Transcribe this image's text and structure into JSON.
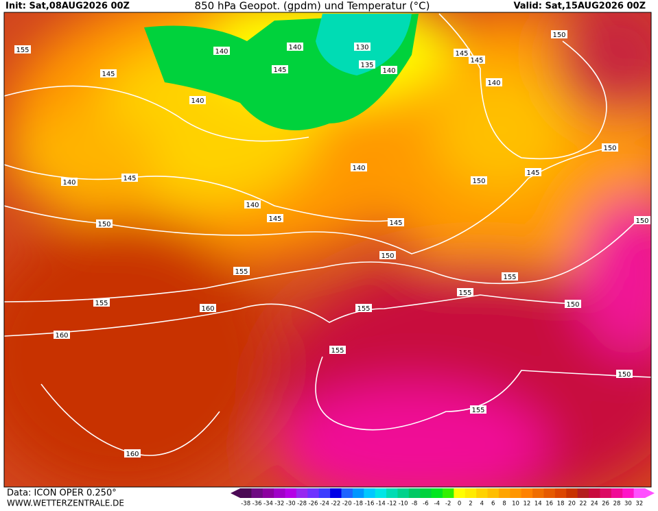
{
  "header": {
    "init": "Init: Sat,08AUG2026 00Z",
    "title": "850 hPa Geopot. (gpdm) und Temperatur (°C)",
    "valid": "Valid: Sat,15AUG2026 00Z"
  },
  "contour_labels": [
    155,
    145,
    140,
    140,
    145,
    130,
    135,
    140,
    145,
    145,
    150,
    140,
    140,
    140,
    145,
    150,
    140,
    145,
    150,
    140,
    145,
    145,
    150,
    150,
    150,
    155,
    155,
    155,
    160,
    155,
    150,
    155,
    160,
    155,
    150,
    155,
    160
  ],
  "footer": {
    "source": "Data: ICON OPER 0.250°",
    "site": "WWW.WETTERZENTRALE.DE"
  },
  "colorbar": {
    "ticks": [
      -38,
      -36,
      -34,
      -32,
      -30,
      -28,
      -26,
      -24,
      -22,
      -20,
      -18,
      -16,
      -14,
      -12,
      -10,
      -8,
      -6,
      -4,
      -2,
      0,
      2,
      4,
      6,
      8,
      10,
      12,
      14,
      16,
      18,
      20,
      22,
      24,
      26,
      28,
      30,
      32
    ],
    "colors": [
      "#4b0a55",
      "#6e0a82",
      "#8c00a0",
      "#a000c8",
      "#b400e6",
      "#9628f0",
      "#6e32ff",
      "#3c3cff",
      "#0000e6",
      "#1e64ff",
      "#0096ff",
      "#00c8ff",
      "#00e6e6",
      "#00dcb4",
      "#00d28c",
      "#00c864",
      "#00d23c",
      "#00e61e",
      "#32f000",
      "#ffff00",
      "#ffeb00",
      "#ffd200",
      "#ffbe00",
      "#ffa500",
      "#ff9600",
      "#ff8200",
      "#f06e00",
      "#e65a00",
      "#dc4600",
      "#c83200",
      "#b41e1e",
      "#c80a3c",
      "#dc0a64",
      "#f00a96",
      "#ff14c8",
      "#ff50ff"
    ]
  }
}
